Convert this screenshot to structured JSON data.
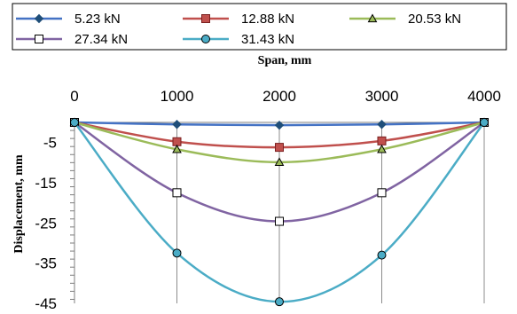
{
  "chart_data": {
    "type": "line",
    "xlabel": "Span, mm",
    "ylabel": "Displacement, mm",
    "x": [
      0,
      1000,
      2000,
      3000,
      4000
    ],
    "x_ticks": [
      0,
      1000,
      2000,
      3000,
      4000
    ],
    "x_tick_labels": [
      "0",
      "1000",
      "2000",
      "3000",
      "4000"
    ],
    "y_ticks": [
      -5,
      -15,
      -25,
      -35,
      -45
    ],
    "y_tick_labels": [
      "-5",
      "-15",
      "-25",
      "-35",
      "-45"
    ],
    "xlim": [
      0,
      4000
    ],
    "ylim": [
      -45,
      0
    ],
    "x_axis_position": "top",
    "grid": "vertical",
    "legend_position": "top",
    "series": [
      {
        "name": "5.23 kN",
        "color": "#4472C4",
        "marker": "diamond",
        "values": [
          0,
          -0.5,
          -0.7,
          -0.5,
          0
        ]
      },
      {
        "name": "12.88 kN",
        "color": "#C0504D",
        "marker": "square",
        "values": [
          0,
          -4.8,
          -6.2,
          -4.6,
          0
        ]
      },
      {
        "name": "20.53 kN",
        "color": "#9BBB59",
        "marker": "triangle",
        "values": [
          0,
          -6.7,
          -9.9,
          -6.7,
          0
        ]
      },
      {
        "name": "27.34 kN",
        "color": "#8064A2",
        "marker": "square-open",
        "values": [
          0,
          -17.5,
          -24.6,
          -17.5,
          0
        ]
      },
      {
        "name": "31.43 kN",
        "color": "#4BACC6",
        "marker": "circle",
        "values": [
          0,
          -32.5,
          -44.6,
          -33.0,
          0
        ]
      }
    ]
  }
}
